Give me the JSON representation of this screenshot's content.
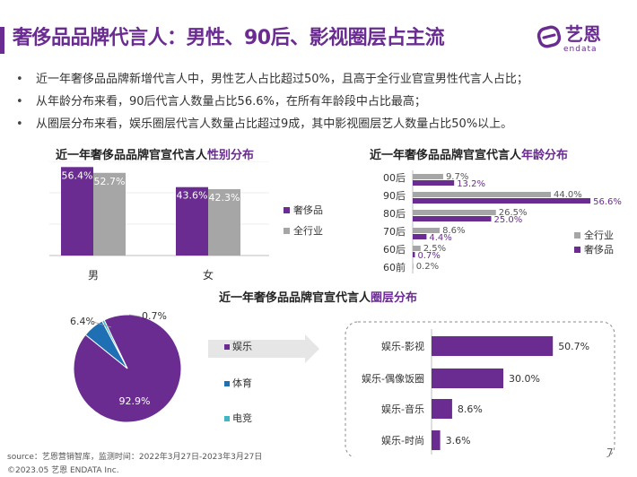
{
  "header": {
    "title": "奢侈品品牌代言人：男性、90后、影视圈层占主流",
    "logo_cn": "艺恩",
    "logo_en": "endata"
  },
  "bullets": [
    "近一年奢侈品品牌新增代言人中，男性艺人占比超过50%，且高于全行业官宣男性代言人占比；",
    "从年龄分布来看，90后代言人数量占比56.6%，在所有年龄段中占比最高；",
    "从圈层分布来看，娱乐圈层代言人数量占比超过9成，其中影视圈层艺人数量占比50%以上。"
  ],
  "colors": {
    "purple": "#6a2c91",
    "gray": "#a6a6a6",
    "blue": "#1f6fb5",
    "teal": "#3fb6c4"
  },
  "gender_title": {
    "prefix": "近一年奢侈品品牌官宣代言人",
    "highlight": "性别分布"
  },
  "age_title": {
    "prefix": "近一年奢侈品品牌官宣代言人",
    "highlight": "年龄分布"
  },
  "circle_title": {
    "prefix": "近一年奢侈品品牌官宣代言人",
    "highlight": "圈层分布"
  },
  "chart_data": [
    {
      "type": "bar",
      "categories": [
        "男",
        "女"
      ],
      "series": [
        {
          "name": "奢侈品",
          "values": [
            56.4,
            43.6
          ],
          "labels": [
            "56.4%",
            "43.6%"
          ]
        },
        {
          "name": "全行业",
          "values": [
            52.7,
            42.3
          ],
          "labels": [
            "52.7%",
            "42.3%"
          ]
        }
      ],
      "ylim": [
        0,
        60
      ],
      "legend": "right"
    },
    {
      "type": "bar",
      "orientation": "horizontal",
      "categories": [
        "00后",
        "90后",
        "80后",
        "70后",
        "60后",
        "60前"
      ],
      "series": [
        {
          "name": "全行业",
          "values": [
            9.7,
            44.0,
            26.5,
            8.6,
            2.5,
            0.2
          ],
          "labels": [
            "9.7%",
            "44.0%",
            "26.5%",
            "8.6%",
            "2.5%",
            "0.2%"
          ]
        },
        {
          "name": "奢侈品",
          "values": [
            13.2,
            56.6,
            25.0,
            4.4,
            0.7,
            0
          ],
          "labels": [
            "13.2%",
            "56.6%",
            "25.0%",
            "4.4%",
            "0.7%",
            ""
          ]
        }
      ],
      "xlim": [
        0,
        60
      ],
      "legend": "right"
    },
    {
      "type": "pie",
      "categories": [
        "娱乐",
        "体育",
        "电竞"
      ],
      "values": [
        92.9,
        6.4,
        0.7
      ],
      "labels": [
        "92.9%",
        "6.4%",
        "0.7%"
      ]
    },
    {
      "type": "bar",
      "orientation": "horizontal",
      "categories": [
        "娱乐-影视",
        "娱乐-偶像饭圈",
        "娱乐-音乐",
        "娱乐-时尚"
      ],
      "values": [
        50.7,
        30.0,
        8.6,
        3.6
      ],
      "labels": [
        "50.7%",
        "30.0%",
        "8.6%",
        "3.6%"
      ],
      "xlim": [
        0,
        60
      ]
    }
  ],
  "footer": {
    "source": "source：艺恩营销智库，监测时间：2022年3月27日-2023年3月27日",
    "copyright": "©2023.05 艺恩 ENDATA Inc.",
    "page_number": "7"
  }
}
